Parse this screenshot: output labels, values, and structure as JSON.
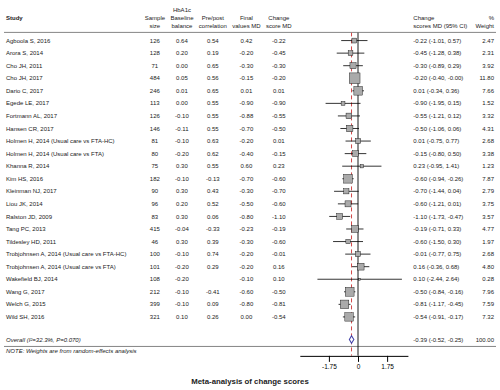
{
  "chart_data": {
    "type": "forest",
    "title": "Meta-analysis of change scores",
    "group_label": "HbA1c",
    "study_header": "Study",
    "categories": [
      "Agboola S, 2016",
      "Arora S, 2014",
      "Cho JH, 2011",
      "Cho JH, 2017",
      "Dario C, 2017",
      "Egede LE, 2017",
      "Fortmann AL, 2017",
      "Hansen CR, 2017",
      "Holmen H, 2014 (Usual care vs FTA-HC)",
      "Holmen H, 2014 (Usual care vs FTA)",
      "Khanna R, 2014",
      "Kim HS, 2016",
      "Kleinman NJ, 2017",
      "Liou JK, 2014",
      "Ralston JD, 2009",
      "Tang PC, 2013",
      "Tildesley HD, 2011",
      "Trobjohnsen A, 2014 (Usual care vs FTA-HC)",
      "Trobjohnsen A, 2014 (Usual care vs FTA)",
      "Wakefield BJ, 2014",
      "Wang G, 2017",
      "Welch G, 2015",
      "Wild SH, 2016"
    ],
    "columns": [
      {
        "name": [
          "Sample",
          "size"
        ],
        "values": [
          126,
          128,
          71,
          484,
          246,
          113,
          126,
          146,
          81,
          80,
          75,
          182,
          90,
          96,
          83,
          415,
          46,
          100,
          101,
          108,
          212,
          399,
          321
        ]
      },
      {
        "name": [
          "Baseline",
          "balance"
        ],
        "values": [
          0.64,
          0.2,
          0.0,
          0.05,
          0.01,
          0.0,
          -0.1,
          -0.11,
          -0.1,
          -0.2,
          0.3,
          -0.1,
          0.3,
          0.2,
          0.3,
          -0.04,
          0.3,
          -0.1,
          -0.2,
          -0.2,
          -0.1,
          -0.1,
          0.1
        ],
        "value_labels": [
          "0.64",
          "0.20",
          "0.00",
          "0.05",
          "0.01",
          "0.00",
          "-0.10",
          "-0.11",
          "-0.10",
          "-0.20",
          "0.30",
          "-0.10",
          "0.30",
          "0.20",
          "0.30",
          "-0.04",
          "0.30",
          "-0.10",
          "-0.20",
          "-0.20",
          "-0.10",
          "-0.10",
          "0.10"
        ]
      },
      {
        "name": [
          "Pre/post",
          "correlation"
        ],
        "values": [
          0.54,
          0.19,
          0.65,
          0.56,
          0.65,
          0.55,
          0.55,
          0.55,
          0.63,
          0.62,
          0.55,
          -0.13,
          0.43,
          0.52,
          0.06,
          -0.33,
          0.39,
          0.74,
          0.29,
          null,
          -0.41,
          0.09,
          0.26
        ],
        "value_labels": [
          "0.54",
          "0.19",
          "0.65",
          "0.56",
          "0.65",
          "0.55",
          "0.55",
          "0.55",
          "0.63",
          "0.62",
          "0.55",
          "-0.13",
          "0.43",
          "0.52",
          "0.06",
          "-0.33",
          "0.39",
          "0.74",
          "0.29",
          null,
          "-0.41",
          "0.09",
          "0.26"
        ]
      },
      {
        "name": [
          "Final",
          "values MD"
        ],
        "values": [
          0.42,
          -0.2,
          -0.3,
          -0.15,
          0.01,
          -0.9,
          -0.88,
          -0.7,
          -0.2,
          -0.4,
          0.6,
          -0.7,
          -0.3,
          -0.5,
          -0.8,
          -0.23,
          -0.3,
          -0.2,
          -0.2,
          -0.1,
          -0.6,
          -0.8,
          0.0
        ],
        "value_labels": [
          "0.42",
          "-0.20",
          "-0.30",
          "-0.15",
          "0.01",
          "-0.90",
          "-0.88",
          "-0.70",
          "-0.20",
          "-0.40",
          "0.60",
          "-0.70",
          "-0.30",
          "-0.50",
          "-0.80",
          "-0.23",
          "-0.30",
          "-0.20",
          "-0.20",
          "-0.10",
          "-0.60",
          "-0.80",
          "0.00"
        ]
      },
      {
        "name": [
          "Change",
          "score MD"
        ],
        "values": [
          -0.22,
          -0.45,
          -0.3,
          -0.2,
          0.01,
          -0.9,
          -0.55,
          -0.5,
          0.01,
          -0.15,
          0.23,
          -0.6,
          -0.7,
          -0.6,
          -1.1,
          -0.19,
          -0.6,
          -0.01,
          0.16,
          0.1,
          -0.5,
          -0.81,
          -0.54
        ],
        "value_labels": [
          "-0.22",
          "-0.45",
          "-0.30",
          "-0.20",
          "0.01",
          "-0.90",
          "-0.55",
          "-0.50",
          "0.01",
          "-0.15",
          "0.23",
          "-0.60",
          "-0.70",
          "-0.60",
          "-1.10",
          "-0.19",
          "-0.60",
          "-0.01",
          "0.16",
          "0.10",
          "-0.50",
          "-0.81",
          "-0.54"
        ]
      }
    ],
    "series": [
      {
        "name": [
          "Change",
          "scores MD (95% CI)"
        ],
        "color": "#aaaaaa",
        "values": [
          -0.22,
          -0.45,
          -0.3,
          -0.2,
          0.01,
          -0.9,
          -0.55,
          -0.5,
          0.01,
          -0.15,
          0.23,
          -0.6,
          -0.7,
          -0.6,
          -1.1,
          -0.19,
          -0.6,
          -0.01,
          0.16,
          0.1,
          -0.5,
          -0.81,
          -0.54
        ],
        "ci_lo": [
          -1.01,
          -1.28,
          -0.89,
          -0.4,
          -0.34,
          -1.95,
          -1.21,
          -1.06,
          -0.75,
          -0.8,
          -0.95,
          -0.94,
          -1.44,
          -1.21,
          -1.73,
          -0.71,
          -1.5,
          -0.77,
          -0.36,
          -2.44,
          -0.84,
          -1.17,
          -0.91
        ],
        "ci_hi": [
          0.57,
          0.38,
          0.29,
          -0.0,
          0.36,
          0.15,
          0.12,
          0.06,
          0.77,
          0.5,
          1.41,
          -0.26,
          0.04,
          0.01,
          -0.47,
          0.33,
          0.3,
          0.75,
          0.68,
          2.64,
          -0.16,
          -0.45,
          -0.17
        ],
        "value_labels": [
          "-0.22 (-1.01, 0.57)",
          "-0.45 (-1.28, 0.38)",
          "-0.30 (-0.89, 0.29)",
          "-0.20 (-0.40, -0.00)",
          "0.01 (-0.34, 0.36)",
          "-0.90 (-1.95, 0.15)",
          "-0.55 (-1.21, 0.12)",
          "-0.50 (-1.06, 0.06)",
          "0.01 (-0.75, 0.77)",
          "-0.15 (-0.80, 0.50)",
          "0.23 (-0.95, 1.41)",
          "-0.60 (-0.94, -0.26)",
          "-0.70 (-1.44, 0.04)",
          "-0.60 (-1.21, 0.01)",
          "-1.10 (-1.73, -0.47)",
          "-0.19 (-0.71, 0.33)",
          "-0.60 (-1.50, 0.30)",
          "-0.01 (-0.77, 0.75)",
          "0.16 (-0.36, 0.68)",
          "0.10 (-2.44, 2.64)",
          "-0.50 (-0.84, -0.16)",
          "-0.81 (-1.17, -0.45)",
          "-0.54 (-0.91, -0.17)"
        ]
      }
    ],
    "weights": {
      "name": [
        "%",
        "Weight"
      ],
      "values": [
        2.47,
        2.31,
        3.92,
        11.8,
        7.66,
        1.52,
        3.32,
        4.31,
        2.68,
        3.38,
        1.23,
        7.87,
        2.79,
        3.75,
        3.57,
        4.77,
        1.97,
        2.68,
        4.8,
        0.28,
        7.96,
        7.59,
        7.32
      ],
      "value_labels": [
        "2.47",
        "2.31",
        "3.92",
        "11.80",
        "7.66",
        "1.52",
        "3.32",
        "4.31",
        "2.68",
        "3.38",
        "1.23",
        "7.87",
        "2.79",
        "3.75",
        "3.57",
        "4.77",
        "1.97",
        "2.68",
        "4.80",
        "0.28",
        "7.96",
        "7.59",
        "7.32"
      ]
    },
    "overall": {
      "label": "Overall (I²=32.3%, P=0.070)",
      "value": -0.39,
      "ci_lo": -0.52,
      "ci_hi": -0.25,
      "value_label": "-0.39 (-0.52, -0.25)",
      "weight": 100.0,
      "weight_label": "100.00",
      "color": "#4444aa"
    },
    "ref_lines": [
      {
        "value": 0,
        "color": "#000000",
        "line_style": "solid"
      },
      {
        "value": -0.39,
        "color": "#cc3333",
        "line_style": "dashed"
      }
    ],
    "note": "NOTE: Weights are from random-effects analysis",
    "xlim": [
      -3.5,
      3.0
    ],
    "xticks": [
      -1.75,
      0,
      1.75
    ],
    "grid": false,
    "legend": false
  }
}
